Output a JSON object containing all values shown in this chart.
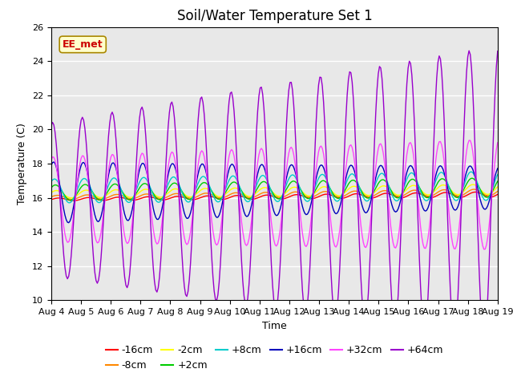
{
  "title": "Soil/Water Temperature Set 1",
  "xlabel": "Time",
  "ylabel": "Temperature (C)",
  "ylim": [
    10,
    26
  ],
  "yticks": [
    10,
    12,
    14,
    16,
    18,
    20,
    22,
    24,
    26
  ],
  "x_tick_labels": [
    "Aug 4",
    "Aug 5",
    "Aug 6",
    "Aug 7",
    "Aug 8",
    "Aug 9",
    "Aug 10",
    "Aug 11",
    "Aug 12",
    "Aug 13",
    "Aug 14",
    "Aug 15",
    "Aug 16",
    "Aug 17",
    "Aug 18",
    "Aug 19"
  ],
  "series": [
    {
      "label": "-16cm",
      "color": "#ff0000",
      "depth": -16
    },
    {
      "label": "-8cm",
      "color": "#ff8800",
      "depth": -8
    },
    {
      "label": "-2cm",
      "color": "#ffff00",
      "depth": -2
    },
    {
      "label": "+2cm",
      "color": "#00cc00",
      "depth": 2
    },
    {
      "label": "+8cm",
      "color": "#00cccc",
      "depth": 8
    },
    {
      "label": "+16cm",
      "color": "#0000bb",
      "depth": 16
    },
    {
      "label": "+32cm",
      "color": "#ff44ff",
      "depth": 32
    },
    {
      "label": "+64cm",
      "color": "#9900cc",
      "depth": 64
    }
  ],
  "watermark_text": "EE_met",
  "watermark_color": "#cc0000",
  "watermark_bg": "#ffffcc",
  "watermark_border": "#aa8800",
  "background_color": "#e8e8e8",
  "title_fontsize": 12,
  "axis_fontsize": 9,
  "tick_fontsize": 8,
  "legend_fontsize": 9
}
